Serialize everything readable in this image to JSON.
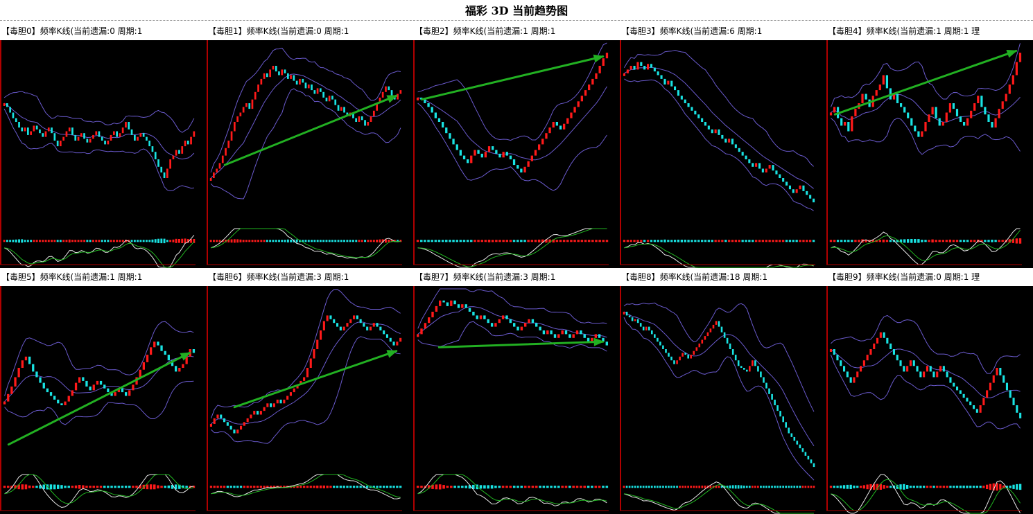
{
  "page": {
    "title": "福彩 3D 当前趋势图"
  },
  "colors": {
    "background": "#000000",
    "frame": "#b00000",
    "up_candle": "#ff1a1a",
    "down_candle": "#19e3e3",
    "band": "#6a5acd",
    "trend_arrow": "#22b022",
    "line_white": "#e8e8e8",
    "line_green": "#21b521"
  },
  "panels": [
    {
      "header": "【毒胆0】频率K线(当前遗漏:0 周期:1"
    },
    {
      "header": "【毒胆1】频率K线(当前遗漏:0 周期:1"
    },
    {
      "header": "【毒胆2】频率K线(当前遗漏:1 周期:1"
    },
    {
      "header": "【毒胆3】频率K线(当前遗漏:6 周期:1"
    },
    {
      "header": "【毒胆4】频率K线(当前遗漏:1 周期:1 理"
    },
    {
      "header": "【毒胆5】频率K线(当前遗漏:1 周期:1"
    },
    {
      "header": "【毒胆6】频率K线(当前遗漏:3 周期:1"
    },
    {
      "header": "【毒胆7】频率K线(当前遗漏:3 周期:1"
    },
    {
      "header": "【毒胆8】频率K线(当前遗漏:18 周期:1"
    },
    {
      "header": "【毒胆9】频率K线(当前遗漏:0 周期:1 理"
    }
  ],
  "chart_data": [
    {
      "type": "line",
      "title": "【毒胆0】频率K线(当前遗漏:0 周期:1",
      "ylim": [
        0,
        100
      ],
      "close": [
        70,
        68,
        65,
        62,
        60,
        57,
        55,
        57,
        53,
        55,
        58,
        56,
        54,
        52,
        55,
        57,
        54,
        50,
        47,
        50,
        52,
        55,
        57,
        53,
        50,
        52,
        54,
        51,
        49,
        51,
        53,
        55,
        52,
        50,
        48,
        50,
        53,
        55,
        52,
        54,
        57,
        60,
        56,
        53,
        50,
        52,
        54,
        52,
        50,
        47,
        44,
        40,
        36,
        33,
        30,
        35,
        40,
        42,
        45,
        43,
        47,
        50,
        48,
        52,
        55
      ],
      "trend": null
    },
    {
      "type": "line",
      "title": "【毒胆1】频率K线(当前遗漏:0 周期:1",
      "ylim": [
        0,
        100
      ],
      "close": [
        30,
        33,
        35,
        38,
        42,
        46,
        50,
        55,
        60,
        63,
        65,
        68,
        70,
        67,
        72,
        76,
        80,
        83,
        86,
        84,
        88,
        90,
        87,
        85,
        88,
        86,
        83,
        85,
        82,
        80,
        83,
        81,
        78,
        80,
        77,
        75,
        78,
        76,
        73,
        71,
        74,
        72,
        69,
        66,
        68,
        65,
        63,
        65,
        62,
        60,
        63,
        61,
        58,
        60,
        63,
        66,
        70,
        73,
        76,
        79,
        77,
        74,
        72,
        75,
        77
      ],
      "trend": [
        [
          0.08,
          0.37
        ],
        [
          0.97,
          0.74
        ]
      ]
    },
    {
      "type": "line",
      "title": "【毒胆2】频率K线(当前遗漏:1 周期:1",
      "ylim": [
        0,
        100
      ],
      "close": [
        73,
        72,
        70,
        68,
        65,
        62,
        60,
        57,
        54,
        51,
        48,
        45,
        42,
        40,
        38,
        42,
        45,
        43,
        41,
        44,
        47,
        45,
        43,
        41,
        44,
        42,
        40,
        37,
        35,
        33,
        36,
        39,
        42,
        45,
        48,
        51,
        54,
        57,
        60,
        58,
        56,
        59,
        62,
        65,
        68,
        71,
        74,
        77,
        80,
        83,
        86,
        90,
        94,
        97
      ],
      "trend": [
        [
          0.03,
          0.72
        ],
        [
          0.97,
          0.95
        ]
      ]
    },
    {
      "type": "line",
      "title": "【毒胆3】频率K线(当前遗漏:6 周期:1",
      "ylim": [
        0,
        100
      ],
      "close": [
        86,
        88,
        90,
        88,
        92,
        90,
        88,
        91,
        89,
        87,
        85,
        83,
        80,
        82,
        79,
        77,
        74,
        72,
        70,
        68,
        66,
        64,
        62,
        60,
        58,
        56,
        54,
        56,
        53,
        51,
        49,
        51,
        48,
        46,
        44,
        42,
        40,
        38,
        36,
        38,
        35,
        33,
        35,
        37,
        34,
        32,
        30,
        28,
        26,
        24,
        22,
        24,
        26,
        23,
        21,
        19,
        17
      ],
      "trend": null
    },
    {
      "type": "line",
      "title": "【毒胆4】频率K线(当前遗漏:1 周期:1 理",
      "ylim": [
        0,
        100
      ],
      "close": [
        65,
        68,
        62,
        58,
        60,
        55,
        63,
        67,
        70,
        75,
        72,
        68,
        74,
        77,
        80,
        85,
        78,
        72,
        75,
        70,
        68,
        65,
        62,
        58,
        55,
        52,
        55,
        60,
        64,
        68,
        62,
        58,
        60,
        65,
        70,
        67,
        63,
        60,
        58,
        62,
        66,
        70,
        74,
        68,
        64,
        60,
        57,
        62,
        67,
        71,
        75,
        80,
        85,
        92,
        97
      ],
      "trend": [
        [
          0.03,
          0.64
        ],
        [
          0.97,
          0.98
        ]
      ]
    },
    {
      "type": "line",
      "title": "【毒胆5】频率K线(当前遗漏:1 周期:1",
      "ylim": [
        0,
        100
      ],
      "close": [
        42,
        46,
        50,
        55,
        60,
        64,
        66,
        62,
        58,
        55,
        52,
        49,
        47,
        45,
        43,
        41,
        40,
        42,
        45,
        48,
        52,
        55,
        53,
        50,
        48,
        51,
        53,
        51,
        49,
        47,
        45,
        47,
        49,
        47,
        45,
        48,
        51,
        55,
        59,
        63,
        67,
        71,
        74,
        72,
        69,
        67,
        64,
        61,
        58,
        60,
        62,
        66,
        70,
        68
      ],
      "trend": [
        [
          0.03,
          0.19
        ],
        [
          0.97,
          0.68
        ]
      ]
    },
    {
      "type": "line",
      "title": "【毒胆6】频率K线(当前遗漏:3 周期:1",
      "ylim": [
        0,
        100
      ],
      "close": [
        30,
        33,
        35,
        33,
        31,
        29,
        27,
        25,
        27,
        29,
        31,
        33,
        35,
        37,
        35,
        37,
        39,
        41,
        39,
        41,
        43,
        41,
        43,
        45,
        47,
        49,
        51,
        53,
        55,
        60,
        65,
        70,
        75,
        80,
        85,
        88,
        86,
        84,
        82,
        80,
        82,
        84,
        86,
        88,
        86,
        84,
        82,
        80,
        82,
        84,
        82,
        80,
        78,
        76,
        74,
        72,
        74,
        76
      ],
      "trend": [
        [
          0.13,
          0.39
        ],
        [
          0.97,
          0.69
        ]
      ]
    },
    {
      "type": "line",
      "title": "【毒胆7】频率K线(当前遗漏:3 周期:1",
      "ylim": [
        0,
        100
      ],
      "close": [
        78,
        81,
        84,
        87,
        90,
        93,
        96,
        95,
        93,
        96,
        94,
        92,
        94,
        92,
        90,
        88,
        86,
        88,
        86,
        84,
        82,
        84,
        86,
        88,
        86,
        84,
        82,
        80,
        82,
        84,
        86,
        84,
        82,
        80,
        78,
        80,
        78,
        76,
        78,
        80,
        78,
        76,
        78,
        80,
        78,
        76,
        74,
        76,
        78,
        76,
        74,
        72
      ],
      "trend": [
        [
          0.12,
          0.71
        ],
        [
          0.97,
          0.74
        ]
      ]
    },
    {
      "type": "line",
      "title": "【毒胆8】频率K线(当前遗漏:18 周期:1",
      "ylim": [
        0,
        100
      ],
      "close": [
        90,
        88,
        87,
        85,
        86,
        84,
        82,
        80,
        82,
        80,
        78,
        76,
        74,
        72,
        70,
        68,
        66,
        64,
        62,
        64,
        66,
        68,
        67,
        65,
        67,
        69,
        71,
        73,
        75,
        77,
        79,
        81,
        83,
        85,
        82,
        79,
        76,
        73,
        70,
        67,
        64,
        61,
        60,
        59,
        58,
        61,
        64,
        61,
        58,
        55,
        52,
        49,
        46,
        43,
        40,
        37,
        34,
        31,
        28,
        25,
        23,
        21,
        19,
        17,
        15,
        13,
        11,
        9,
        7
      ],
      "trend": null
    },
    {
      "type": "line",
      "title": "【毒胆9】频率K线(当前遗漏:0 周期:1 理",
      "ylim": [
        0,
        100
      ],
      "close": [
        70,
        67,
        64,
        61,
        58,
        55,
        52,
        55,
        58,
        61,
        64,
        67,
        70,
        73,
        76,
        79,
        76,
        73,
        70,
        67,
        64,
        61,
        58,
        61,
        64,
        61,
        58,
        55,
        58,
        61,
        58,
        55,
        58,
        61,
        58,
        55,
        52,
        50,
        48,
        46,
        44,
        42,
        40,
        38,
        36,
        40,
        44,
        48,
        52,
        56,
        60,
        56,
        52,
        48,
        44,
        40,
        36,
        33
      ],
      "trend": null
    }
  ]
}
